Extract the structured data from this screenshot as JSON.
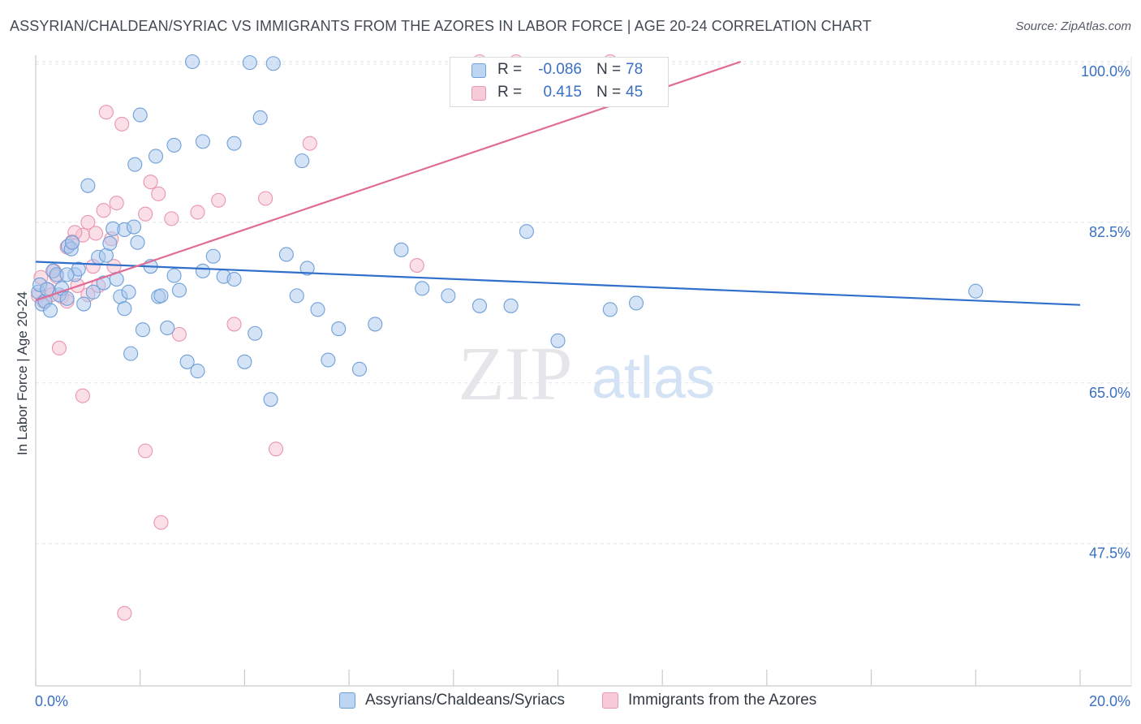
{
  "title": "ASSYRIAN/CHALDEAN/SYRIAC VS IMMIGRANTS FROM THE AZORES IN LABOR FORCE | AGE 20-24 CORRELATION CHART",
  "source": "Source: ZipAtlas.com",
  "watermark": {
    "zip": "ZIP",
    "atlas": "atlas"
  },
  "colors": {
    "blue_fill": "#a9c8ee",
    "blue_stroke": "#6f9fd8",
    "blue_line": "#2f6fcc",
    "pink_fill": "#f6bfd0",
    "pink_stroke": "#e995b0",
    "pink_line": "#e06b95",
    "axis_text": "#3a6fc4",
    "grid": "#dfe3e8"
  },
  "stats": {
    "rows": [
      {
        "r_label": "R =",
        "r_value": "-0.086",
        "n_label": "N =",
        "n_value": "78",
        "swatch": "blue"
      },
      {
        "r_label": "R =",
        "r_value": "0.415",
        "n_label": "N =",
        "n_value": "45",
        "swatch": "pink"
      }
    ]
  },
  "legend": {
    "series1": "Assyrians/Chaldeans/Syriacs",
    "series2": "Immigrants from the Azores"
  },
  "chart_data": {
    "type": "scatter",
    "title": "ASSYRIAN/CHALDEAN/SYRIAC VS IMMIGRANTS FROM THE AZORES IN LABOR FORCE | AGE 20-24 CORRELATION CHART",
    "xlabel": "",
    "ylabel": "In Labor Force | Age 20-24",
    "xlim": [
      0,
      20
    ],
    "ylim": [
      32,
      100
    ],
    "x_tick_labels": [
      {
        "value": 0,
        "label": "0.0%"
      },
      {
        "value": 20,
        "label": "20.0%"
      }
    ],
    "y_tick_labels": [
      {
        "value": 100,
        "label": "100.0%"
      },
      {
        "value": 82.5,
        "label": "82.5%"
      },
      {
        "value": 65,
        "label": "65.0%"
      },
      {
        "value": 47.5,
        "label": "47.5%"
      }
    ],
    "legend_position": "bottom",
    "series": [
      {
        "name": "Assyrians/Chaldeans/Syriacs",
        "color": "blue",
        "R": -0.086,
        "N": 78,
        "trend": {
          "x": [
            0,
            20
          ],
          "y": [
            78.2,
            73.5
          ]
        },
        "points": [
          [
            0.05,
            74.9
          ],
          [
            0.08,
            75.7
          ],
          [
            0.12,
            73.6
          ],
          [
            0.18,
            73.9
          ],
          [
            0.22,
            75.2
          ],
          [
            0.28,
            72.9
          ],
          [
            0.33,
            77.2
          ],
          [
            0.4,
            76.8
          ],
          [
            0.45,
            74.6
          ],
          [
            0.5,
            75.3
          ],
          [
            0.6,
            74.2
          ],
          [
            0.62,
            79.9
          ],
          [
            0.68,
            79.6
          ],
          [
            0.75,
            76.8
          ],
          [
            0.82,
            77.4
          ],
          [
            0.92,
            73.6
          ],
          [
            1.1,
            74.9
          ],
          [
            1.2,
            78.7
          ],
          [
            1.3,
            75.9
          ],
          [
            1.35,
            78.9
          ],
          [
            1.42,
            80.2
          ],
          [
            1.48,
            81.8
          ],
          [
            1.55,
            76.3
          ],
          [
            1.62,
            74.4
          ],
          [
            1.7,
            73.1
          ],
          [
            1.78,
            74.9
          ],
          [
            1.82,
            68.2
          ],
          [
            1.7,
            81.7
          ],
          [
            1.88,
            82.0
          ],
          [
            1.95,
            80.3
          ],
          [
            2.05,
            70.8
          ],
          [
            2.2,
            77.7
          ],
          [
            2.35,
            74.4
          ],
          [
            2.4,
            74.5
          ],
          [
            2.52,
            71.0
          ],
          [
            2.65,
            76.7
          ],
          [
            2.75,
            75.1
          ],
          [
            2.9,
            67.3
          ],
          [
            3.1,
            66.3
          ],
          [
            3.2,
            77.2
          ],
          [
            3.4,
            78.8
          ],
          [
            3.6,
            76.6
          ],
          [
            3.8,
            76.3
          ],
          [
            4.0,
            67.3
          ],
          [
            4.2,
            70.4
          ],
          [
            4.5,
            63.2
          ],
          [
            4.8,
            79.0
          ],
          [
            5.0,
            74.5
          ],
          [
            5.2,
            77.5
          ],
          [
            5.4,
            73.0
          ],
          [
            5.6,
            67.5
          ],
          [
            5.8,
            70.9
          ],
          [
            6.2,
            66.5
          ],
          [
            6.5,
            71.4
          ],
          [
            7.0,
            79.5
          ],
          [
            7.4,
            75.3
          ],
          [
            7.9,
            74.5
          ],
          [
            8.5,
            73.4
          ],
          [
            9.1,
            73.4
          ],
          [
            9.4,
            81.5
          ],
          [
            10.0,
            69.6
          ],
          [
            11.0,
            73.0
          ],
          [
            11.5,
            73.7
          ],
          [
            1.0,
            86.5
          ],
          [
            1.9,
            88.8
          ],
          [
            2.0,
            94.2
          ],
          [
            2.3,
            89.7
          ],
          [
            2.65,
            90.9
          ],
          [
            3.2,
            91.3
          ],
          [
            3.8,
            91.1
          ],
          [
            4.3,
            93.9
          ],
          [
            5.1,
            89.2
          ],
          [
            3.0,
            100.0
          ],
          [
            4.1,
            99.9
          ],
          [
            4.55,
            99.8
          ],
          [
            0.6,
            76.8
          ],
          [
            0.7,
            80.3
          ],
          [
            18.0,
            75.0
          ]
        ]
      },
      {
        "name": "Immigrants from the Azores",
        "color": "pink",
        "R": 0.415,
        "N": 45,
        "trend": {
          "x": [
            0,
            13.5
          ],
          "y": [
            74.0,
            100.0
          ]
        },
        "points": [
          [
            0.05,
            74.5
          ],
          [
            0.1,
            76.5
          ],
          [
            0.15,
            73.9
          ],
          [
            0.25,
            75.1
          ],
          [
            0.35,
            77.2
          ],
          [
            0.4,
            76.6
          ],
          [
            0.5,
            74.4
          ],
          [
            0.6,
            79.8
          ],
          [
            0.7,
            80.4
          ],
          [
            0.8,
            75.6
          ],
          [
            0.9,
            81.1
          ],
          [
            1.0,
            82.5
          ],
          [
            1.1,
            77.7
          ],
          [
            1.2,
            75.6
          ],
          [
            1.3,
            83.8
          ],
          [
            1.45,
            80.7
          ],
          [
            1.55,
            84.6
          ],
          [
            1.65,
            93.2
          ],
          [
            2.1,
            83.4
          ],
          [
            2.2,
            86.9
          ],
          [
            2.35,
            85.6
          ],
          [
            2.6,
            82.9
          ],
          [
            2.75,
            70.3
          ],
          [
            3.1,
            83.6
          ],
          [
            3.5,
            84.9
          ],
          [
            3.8,
            71.4
          ],
          [
            4.4,
            85.1
          ],
          [
            4.6,
            57.8
          ],
          [
            5.25,
            91.1
          ],
          [
            7.3,
            77.8
          ],
          [
            0.45,
            68.8
          ],
          [
            0.9,
            63.6
          ],
          [
            1.35,
            94.5
          ],
          [
            2.1,
            57.6
          ],
          [
            2.4,
            49.8
          ],
          [
            1.7,
            39.9
          ],
          [
            0.6,
            73.9
          ],
          [
            0.75,
            81.4
          ],
          [
            1.0,
            74.6
          ],
          [
            1.15,
            81.3
          ],
          [
            1.5,
            77.7
          ],
          [
            0.3,
            74.6
          ],
          [
            8.5,
            100.0
          ],
          [
            9.2,
            100.0
          ],
          [
            11.0,
            100.0
          ]
        ]
      }
    ]
  }
}
